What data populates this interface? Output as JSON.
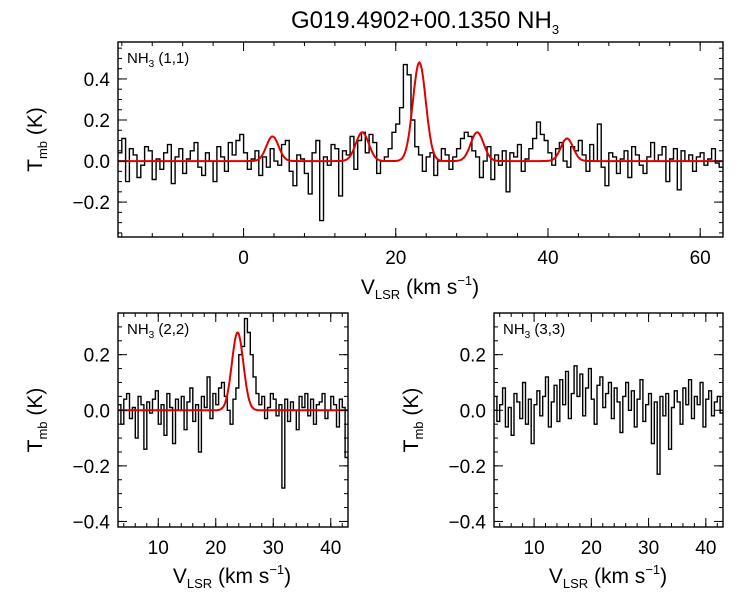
{
  "title": {
    "prefix": "G019.4902+00.1350 NH",
    "subscript": "3"
  },
  "chart_data": [
    {
      "id": "p11",
      "type": "line",
      "panel_label": {
        "main": "NH",
        "sub": "3",
        "suffix": " (1,1)"
      },
      "xlabel": {
        "main": "V",
        "sub": "LSR",
        "unit": " (km s",
        "sup": "−1",
        "close": ")"
      },
      "ylabel": {
        "main": "T",
        "sub": "mb",
        "unit": " (K)"
      },
      "xlim": [
        -16.5,
        63
      ],
      "ylim": [
        -0.37,
        0.58
      ],
      "xticks": [
        {
          "value": 0,
          "label": "0"
        },
        {
          "value": 20,
          "label": "20"
        },
        {
          "value": 40,
          "label": "40"
        },
        {
          "value": 60,
          "label": "60"
        }
      ],
      "yticks": [
        {
          "value": -0.2,
          "label": "−0.2"
        },
        {
          "value": 0.0,
          "label": "0.0"
        },
        {
          "value": 0.2,
          "label": "0.2"
        },
        {
          "value": 0.4,
          "label": "0.4"
        }
      ],
      "spectrum": {
        "x_start": -16.5,
        "x_step": 0.5,
        "y": [
          0.04,
          0.11,
          -0.1,
          0.06,
          0.03,
          -0.08,
          -0.02,
          0.07,
          0.05,
          -0.09,
          0.01,
          -0.04,
          0.04,
          0.08,
          -0.11,
          0.02,
          0.06,
          -0.06,
          0.01,
          0.05,
          0.09,
          -0.03,
          -0.07,
          0.04,
          0.0,
          -0.1,
          0.07,
          0.02,
          -0.05,
          0.09,
          0.03,
          0.1,
          0.13,
          0.04,
          -0.04,
          0.01,
          0.05,
          -0.07,
          0.02,
          -0.03,
          0.06,
          0.0,
          -0.02,
          0.08,
          0.1,
          -0.05,
          -0.12,
          0.03,
          0.01,
          -0.06,
          -0.16,
          0.04,
          0.1,
          -0.29,
          0.02,
          -0.02,
          0.08,
          0.06,
          -0.17,
          0.05,
          0.03,
          0.12,
          -0.04,
          0.1,
          0.14,
          0.04,
          0.13,
          0.09,
          -0.06,
          0.0,
          0.02,
          0.06,
          0.14,
          0.18,
          0.26,
          0.47,
          0.42,
          0.2,
          0.07,
          0.03,
          -0.05,
          0.02,
          0.04,
          -0.07,
          0.0,
          0.06,
          0.03,
          -0.04,
          0.02,
          0.06,
          0.11,
          0.14,
          0.12,
          0.05,
          0.02,
          -0.08,
          0.0,
          0.07,
          -0.09,
          0.03,
          -0.02,
          0.05,
          -0.15,
          0.04,
          0.02,
          0.08,
          -0.05,
          0.01,
          0.06,
          0.11,
          0.19,
          0.13,
          0.1,
          0.04,
          -0.02,
          0.06,
          0.09,
          0.0,
          -0.03,
          0.07,
          0.05,
          0.1,
          0.03,
          -0.05,
          0.08,
          0.0,
          0.18,
          -0.03,
          -0.12,
          0.04,
          0.02,
          -0.06,
          0.01,
          0.05,
          -0.08,
          0.07,
          0.03,
          -0.02,
          -0.06,
          0.02,
          0.09,
          0.0,
          0.03,
          0.07,
          -0.1,
          0.01,
          0.06,
          -0.14,
          0.05,
          0.0,
          0.03,
          -0.05,
          0.02,
          0.04,
          -0.02,
          0.01,
          0.06,
          -0.01,
          -0.03,
          0.02
        ]
      },
      "fit": {
        "components": [
          {
            "center": 3.8,
            "amplitude": 0.12,
            "sigma": 0.8
          },
          {
            "center": 15.6,
            "amplitude": 0.14,
            "sigma": 0.85
          },
          {
            "center": 23.1,
            "amplitude": 0.48,
            "sigma": 0.85
          },
          {
            "center": 30.7,
            "amplitude": 0.14,
            "sigma": 0.85
          },
          {
            "center": 42.5,
            "amplitude": 0.11,
            "sigma": 0.8
          }
        ]
      }
    },
    {
      "id": "p22",
      "type": "line",
      "panel_label": {
        "main": "NH",
        "sub": "3",
        "suffix": " (2,2)"
      },
      "xlabel": {
        "main": "V",
        "sub": "LSR",
        "unit": " (km s",
        "sup": "−1",
        "close": ")"
      },
      "ylabel": {
        "main": "T",
        "sub": "mb",
        "unit": " (K)"
      },
      "xlim": [
        3,
        43
      ],
      "ylim": [
        -0.42,
        0.35
      ],
      "xticks": [
        {
          "value": 10,
          "label": "10"
        },
        {
          "value": 20,
          "label": "20"
        },
        {
          "value": 30,
          "label": "30"
        },
        {
          "value": 40,
          "label": "40"
        }
      ],
      "yticks": [
        {
          "value": -0.4,
          "label": "−0.4"
        },
        {
          "value": -0.2,
          "label": "−0.2"
        },
        {
          "value": 0.0,
          "label": "0.0"
        },
        {
          "value": 0.2,
          "label": "0.2"
        }
      ],
      "spectrum": {
        "x_start": 3,
        "x_step": 0.5,
        "y": [
          0.02,
          -0.05,
          0.04,
          0.06,
          -0.03,
          0.01,
          -0.1,
          0.05,
          0.02,
          -0.14,
          0.03,
          -0.01,
          0.04,
          0.07,
          -0.05,
          0.02,
          -0.09,
          0.06,
          0.01,
          -0.12,
          0.04,
          0.0,
          0.05,
          -0.07,
          0.03,
          0.08,
          -0.04,
          0.02,
          -0.15,
          0.05,
          0.01,
          0.12,
          -0.03,
          0.06,
          0.02,
          0.08,
          0.1,
          0.05,
          0.0,
          -0.05,
          0.04,
          0.08,
          0.2,
          0.23,
          0.33,
          0.28,
          0.2,
          0.12,
          0.06,
          0.02,
          0.05,
          -0.03,
          0.01,
          0.06,
          0.04,
          -0.02,
          0.02,
          -0.28,
          0.04,
          -0.04,
          0.03,
          0.0,
          -0.07,
          0.05,
          0.01,
          0.06,
          -0.02,
          0.04,
          -0.05,
          0.02,
          0.03,
          0.06,
          -0.03,
          0.0,
          0.05,
          0.02,
          -0.06,
          0.04,
          0.01,
          -0.17
        ]
      },
      "fit": {
        "components": [
          {
            "center": 23.8,
            "amplitude": 0.28,
            "sigma": 1.0
          }
        ]
      }
    },
    {
      "id": "p33",
      "type": "line",
      "panel_label": {
        "main": "NH",
        "sub": "3",
        "suffix": " (3,3)"
      },
      "xlabel": {
        "main": "V",
        "sub": "LSR",
        "unit": " (km s",
        "sup": "−1",
        "close": ")"
      },
      "ylabel": {
        "main": "T",
        "sub": "mb",
        "unit": " (K)"
      },
      "xlim": [
        3,
        43
      ],
      "ylim": [
        -0.42,
        0.35
      ],
      "xticks": [
        {
          "value": 10,
          "label": "10"
        },
        {
          "value": 20,
          "label": "20"
        },
        {
          "value": 30,
          "label": "30"
        },
        {
          "value": 40,
          "label": "40"
        }
      ],
      "yticks": [
        {
          "value": -0.4,
          "label": "−0.4"
        },
        {
          "value": -0.2,
          "label": "−0.2"
        },
        {
          "value": 0.0,
          "label": "0.0"
        },
        {
          "value": 0.2,
          "label": "0.2"
        }
      ],
      "spectrum": {
        "x_start": 3,
        "x_step": 0.5,
        "y": [
          0.05,
          -0.04,
          0.02,
          0.08,
          -0.06,
          0.01,
          -0.09,
          0.06,
          0.03,
          -0.03,
          0.1,
          -0.05,
          0.04,
          -0.12,
          0.02,
          0.07,
          -0.02,
          0.05,
          0.12,
          -0.06,
          0.03,
          0.09,
          -0.04,
          0.11,
          0.02,
          0.14,
          -0.03,
          0.06,
          0.16,
          0.05,
          0.13,
          -0.02,
          0.08,
          0.15,
          0.04,
          -0.05,
          0.09,
          0.12,
          0.01,
          0.06,
          0.1,
          -0.03,
          0.08,
          0.03,
          -0.08,
          0.05,
          0.1,
          0.0,
          0.07,
          -0.06,
          0.04,
          0.11,
          -0.04,
          0.02,
          0.06,
          -0.12,
          0.03,
          -0.23,
          0.05,
          -0.02,
          0.06,
          -0.14,
          0.01,
          0.07,
          0.03,
          -0.05,
          0.08,
          0.02,
          0.11,
          -0.03,
          0.05,
          0.02,
          0.1,
          -0.06,
          0.04,
          0.07,
          -0.02,
          0.03,
          0.05,
          -0.01
        ]
      },
      "fit": null
    }
  ]
}
